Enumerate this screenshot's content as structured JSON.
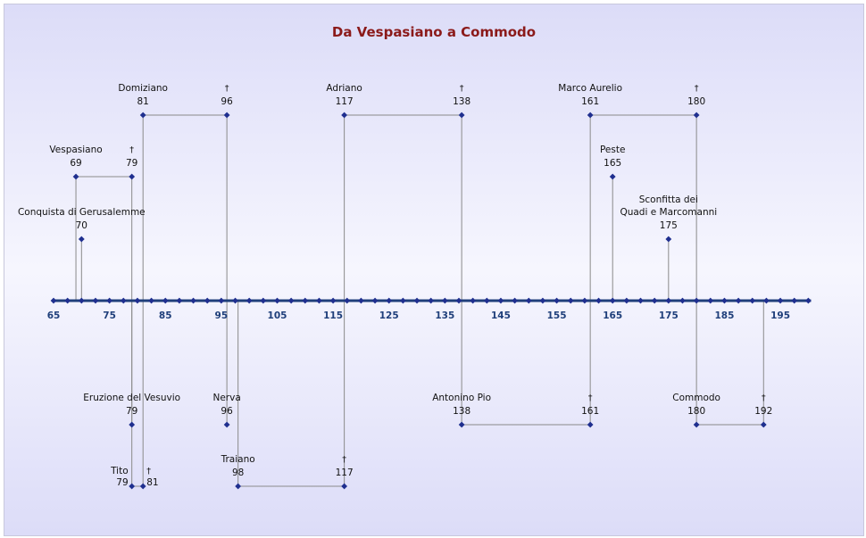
{
  "chart_data": {
    "type": "timeline",
    "title": "Da Vespasiano a Commodo",
    "axis": {
      "min": 65,
      "max": 200,
      "tick_labels": [
        65,
        75,
        85,
        95,
        105,
        115,
        125,
        135,
        145,
        155,
        165,
        175,
        185,
        195
      ]
    },
    "spans": [
      {
        "label": "Vespasiano",
        "start": 69,
        "end": 79,
        "start_text": "69",
        "end_text": "79",
        "side": "above",
        "level": 2
      },
      {
        "label": "Domiziano",
        "start": 81,
        "end": 96,
        "start_text": "81",
        "end_text": "96",
        "side": "above",
        "level": 1
      },
      {
        "label": "Adriano",
        "start": 117,
        "end": 138,
        "start_text": "117",
        "end_text": "138",
        "side": "above",
        "level": 1
      },
      {
        "label": "Marco Aurelio",
        "start": 161,
        "end": 180,
        "start_text": "161",
        "end_text": "180",
        "side": "above",
        "level": 1
      },
      {
        "label": "Antonino Pio",
        "start": 138,
        "end": 161,
        "start_text": "138",
        "end_text": "161",
        "side": "below",
        "level": 1
      },
      {
        "label": "Commodo",
        "start": 180,
        "end": 192,
        "start_text": "180",
        "end_text": "192",
        "side": "below",
        "level": 1
      },
      {
        "label": "Traiano",
        "start": 98,
        "end": 117,
        "start_text": "98",
        "end_text": "117",
        "side": "below",
        "level": 2
      },
      {
        "label": "Tito",
        "start": 79,
        "end": 81,
        "start_text": "79",
        "end_text": "81",
        "side": "below",
        "level": 2
      }
    ],
    "events": [
      {
        "label": "Conquista di Gerusalemme",
        "year": 70,
        "year_text": "70",
        "side": "above",
        "level": 3
      },
      {
        "label": "Peste",
        "year": 165,
        "year_text": "165",
        "side": "above",
        "level": 2
      },
      {
        "label": "Sconfitta dei Quadi e Marcomanni",
        "year": 175,
        "year_text": "175",
        "side": "above",
        "level": 3
      },
      {
        "label": "Eruzione del Vesuvio",
        "year": 79,
        "year_text": "79",
        "side": "below",
        "level": 1
      },
      {
        "label": "Nerva",
        "year": 96,
        "year_text": "96",
        "side": "below",
        "level": 1
      }
    ],
    "death_mark": "†",
    "colors": {
      "title": "#8b1a1a",
      "axis": "#1f3f7a",
      "axis_label": "#1f3f7a",
      "marker": "#1f2f8f",
      "connector": "#8a8a8a",
      "label_text": "#111111"
    }
  }
}
